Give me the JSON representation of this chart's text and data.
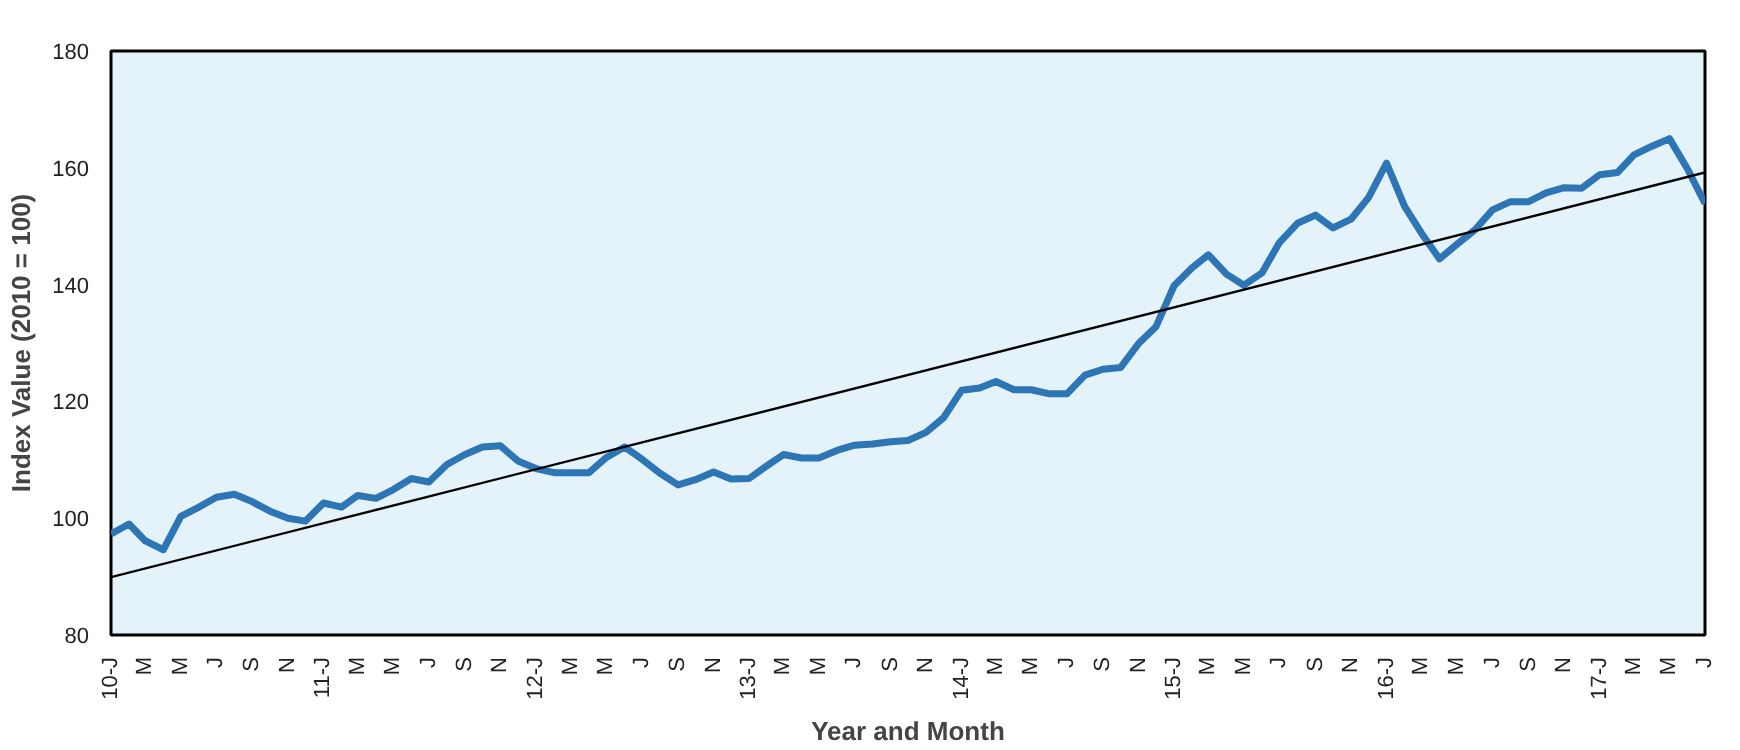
{
  "chart_data": {
    "type": "line",
    "xlabel": "Year and Month",
    "ylabel": "Index Value (2010 = 100)",
    "x": [
      "2010-01",
      "2010-02",
      "2010-03",
      "2010-04",
      "2010-05",
      "2010-06",
      "2010-07",
      "2010-08",
      "2010-09",
      "2010-10",
      "2010-11",
      "2010-12",
      "2011-01",
      "2011-02",
      "2011-03",
      "2011-04",
      "2011-05",
      "2011-06",
      "2011-07",
      "2011-08",
      "2011-09",
      "2011-10",
      "2011-11",
      "2011-12",
      "2012-01",
      "2012-02",
      "2012-03",
      "2012-04",
      "2012-05",
      "2012-06",
      "2012-07",
      "2012-08",
      "2012-09",
      "2012-10",
      "2012-11",
      "2012-12",
      "2013-01",
      "2013-02",
      "2013-03",
      "2013-04",
      "2013-05",
      "2013-06",
      "2013-07",
      "2013-08",
      "2013-09",
      "2013-10",
      "2013-11",
      "2013-12",
      "2014-01",
      "2014-02",
      "2014-03",
      "2014-04",
      "2014-05",
      "2014-06",
      "2014-07",
      "2014-08",
      "2014-09",
      "2014-10",
      "2014-11",
      "2014-12",
      "2015-01",
      "2015-02",
      "2015-03",
      "2015-04",
      "2015-05",
      "2015-06",
      "2015-07",
      "2015-08",
      "2015-09",
      "2015-10",
      "2015-11",
      "2015-12",
      "2016-01",
      "2016-02",
      "2016-03",
      "2016-04",
      "2016-05",
      "2016-06",
      "2016-07",
      "2016-08",
      "2016-09",
      "2016-10",
      "2016-11",
      "2016-12",
      "2017-01",
      "2017-02",
      "2017-03",
      "2017-04",
      "2017-05",
      "2017-06",
      "2017-07"
    ],
    "series": [
      {
        "color": "#2e75b6",
        "values": [
          97.3,
          99.0,
          96.1,
          94.6,
          100.3,
          101.9,
          103.6,
          104.1,
          102.8,
          101.2,
          100.0,
          99.5,
          102.6,
          101.9,
          103.9,
          103.4,
          104.9,
          106.8,
          106.2,
          109.2,
          110.9,
          112.2,
          112.4,
          109.8,
          108.5,
          107.8,
          107.8,
          107.8,
          110.4,
          112.2,
          110.1,
          107.7,
          105.7,
          106.6,
          107.9,
          106.7,
          106.8,
          109.0,
          110.9,
          110.3,
          110.3,
          111.6,
          112.5,
          112.7,
          113.1,
          113.3,
          114.7,
          117.2,
          121.9,
          122.3,
          123.4,
          122.0,
          122.0,
          121.3,
          121.3,
          124.5,
          125.5,
          125.8,
          129.9,
          132.8,
          139.8,
          142.9,
          145.1,
          141.8,
          139.9,
          142.0,
          147.2,
          150.5,
          151.9,
          149.7,
          151.2,
          154.9,
          160.8,
          153.4,
          148.8,
          144.4,
          146.9,
          149.4,
          152.8,
          154.2,
          154.2,
          155.7,
          156.6,
          156.5,
          158.8,
          159.2,
          162.2,
          163.7,
          165.0,
          159.8,
          153.9
        ]
      },
      {
        "type": "line",
        "color": "#000000",
        "x": [
          "2010-01",
          "2017-07"
        ],
        "values": [
          89.9,
          159.2
        ]
      }
    ],
    "xlim": [
      "2010-01",
      "2017-07"
    ],
    "ylim": [
      80,
      180
    ],
    "yticks": [
      80,
      100,
      120,
      140,
      160,
      180
    ],
    "xticks": [
      {
        "value": "2010-01",
        "label": "10-J"
      },
      {
        "value": "2010-03",
        "label": "M"
      },
      {
        "value": "2010-05",
        "label": "M"
      },
      {
        "value": "2010-07",
        "label": "J"
      },
      {
        "value": "2010-09",
        "label": "S"
      },
      {
        "value": "2010-11",
        "label": "N"
      },
      {
        "value": "2011-01",
        "label": "11-J"
      },
      {
        "value": "2011-03",
        "label": "M"
      },
      {
        "value": "2011-05",
        "label": "M"
      },
      {
        "value": "2011-07",
        "label": "J"
      },
      {
        "value": "2011-09",
        "label": "S"
      },
      {
        "value": "2011-11",
        "label": "N"
      },
      {
        "value": "2012-01",
        "label": "12-J"
      },
      {
        "value": "2012-03",
        "label": "M"
      },
      {
        "value": "2012-05",
        "label": "M"
      },
      {
        "value": "2012-07",
        "label": "J"
      },
      {
        "value": "2012-09",
        "label": "S"
      },
      {
        "value": "2012-11",
        "label": "N"
      },
      {
        "value": "2013-01",
        "label": "13-J"
      },
      {
        "value": "2013-03",
        "label": "M"
      },
      {
        "value": "2013-05",
        "label": "M"
      },
      {
        "value": "2013-07",
        "label": "J"
      },
      {
        "value": "2013-09",
        "label": "S"
      },
      {
        "value": "2013-11",
        "label": "N"
      },
      {
        "value": "2014-01",
        "label": "14-J"
      },
      {
        "value": "2014-03",
        "label": "M"
      },
      {
        "value": "2014-05",
        "label": "M"
      },
      {
        "value": "2014-07",
        "label": "J"
      },
      {
        "value": "2014-09",
        "label": "S"
      },
      {
        "value": "2014-11",
        "label": "N"
      },
      {
        "value": "2015-01",
        "label": "15-J"
      },
      {
        "value": "2015-03",
        "label": "M"
      },
      {
        "value": "2015-05",
        "label": "M"
      },
      {
        "value": "2015-07",
        "label": "J"
      },
      {
        "value": "2015-09",
        "label": "S"
      },
      {
        "value": "2015-11",
        "label": "N"
      },
      {
        "value": "2016-01",
        "label": "16-J"
      },
      {
        "value": "2016-03",
        "label": "M"
      },
      {
        "value": "2016-05",
        "label": "M"
      },
      {
        "value": "2016-07",
        "label": "J"
      },
      {
        "value": "2016-09",
        "label": "S"
      },
      {
        "value": "2016-11",
        "label": "N"
      },
      {
        "value": "2017-01",
        "label": "17-J"
      },
      {
        "value": "2017-03",
        "label": "M"
      },
      {
        "value": "2017-05",
        "label": "M"
      },
      {
        "value": "2017-07",
        "label": "J"
      }
    ],
    "grid": false,
    "marker": "none",
    "line_style": "solid"
  }
}
